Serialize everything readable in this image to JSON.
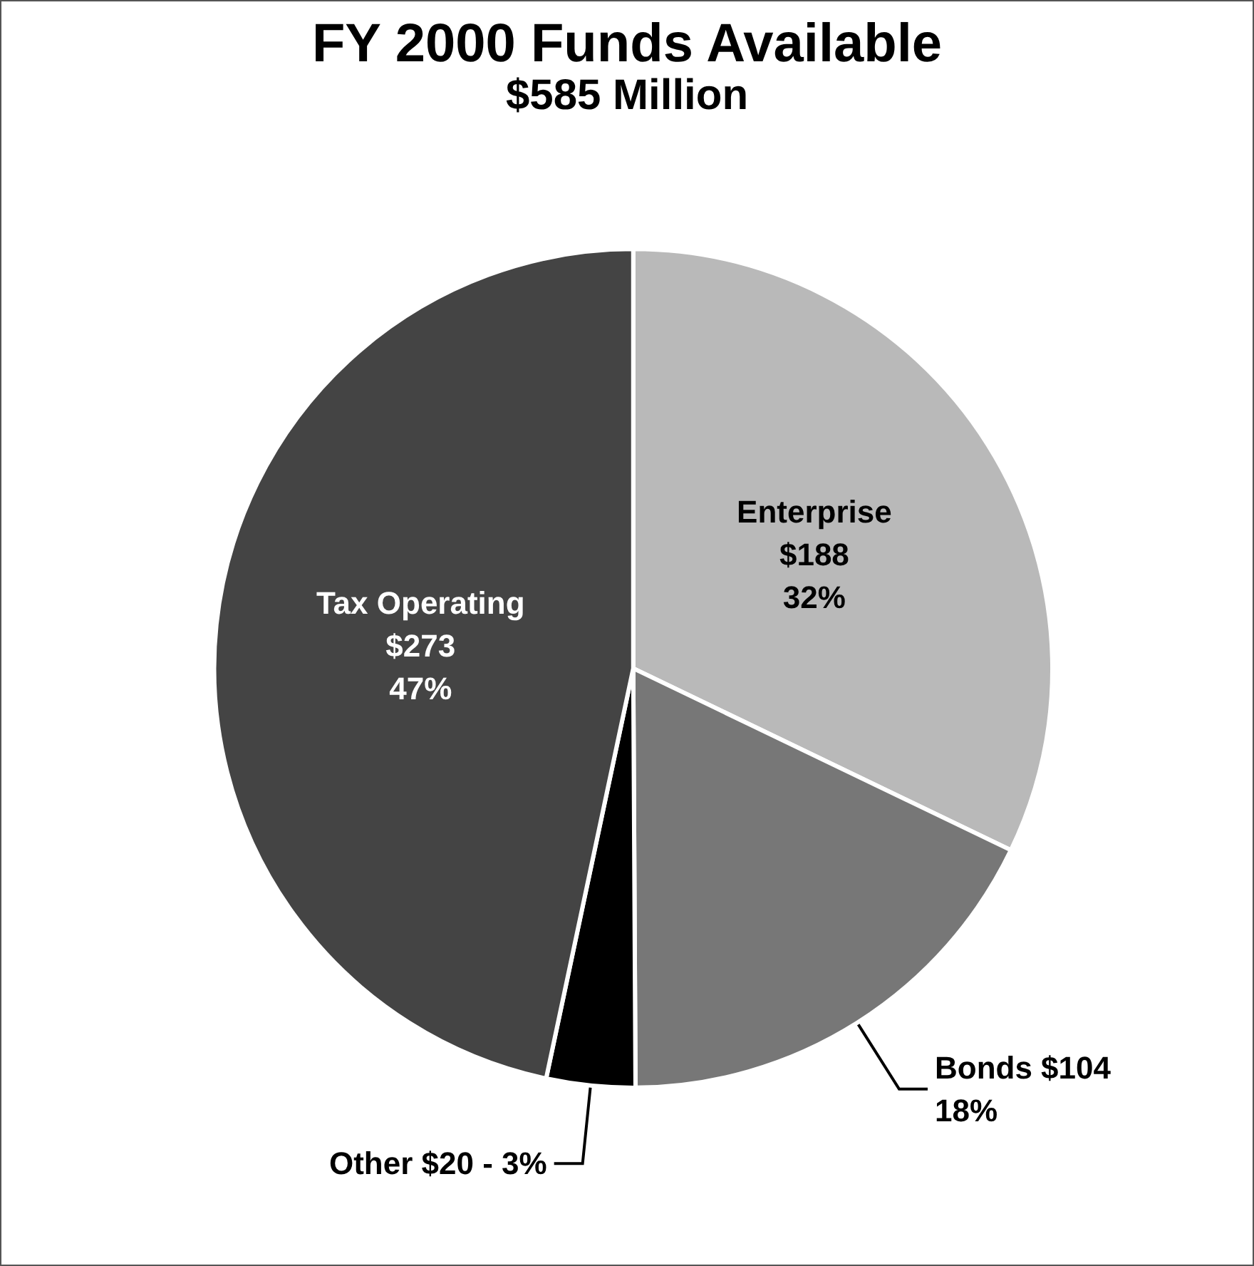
{
  "chart_data": {
    "type": "pie",
    "title": "FY 2000 Funds Available",
    "subtitle": "$585 Million",
    "categories": [
      "Enterprise",
      "Bonds",
      "Other",
      "Tax Operating"
    ],
    "values": [
      188,
      104,
      20,
      273
    ],
    "value_labels": [
      "\n$188\n32%",
      " $104\n18%",
      " $20 - 3%",
      "\n$273\n47%"
    ],
    "colors": [
      "#b9b9b9",
      "#777777",
      "#000000",
      "#444444"
    ],
    "legend": false
  }
}
